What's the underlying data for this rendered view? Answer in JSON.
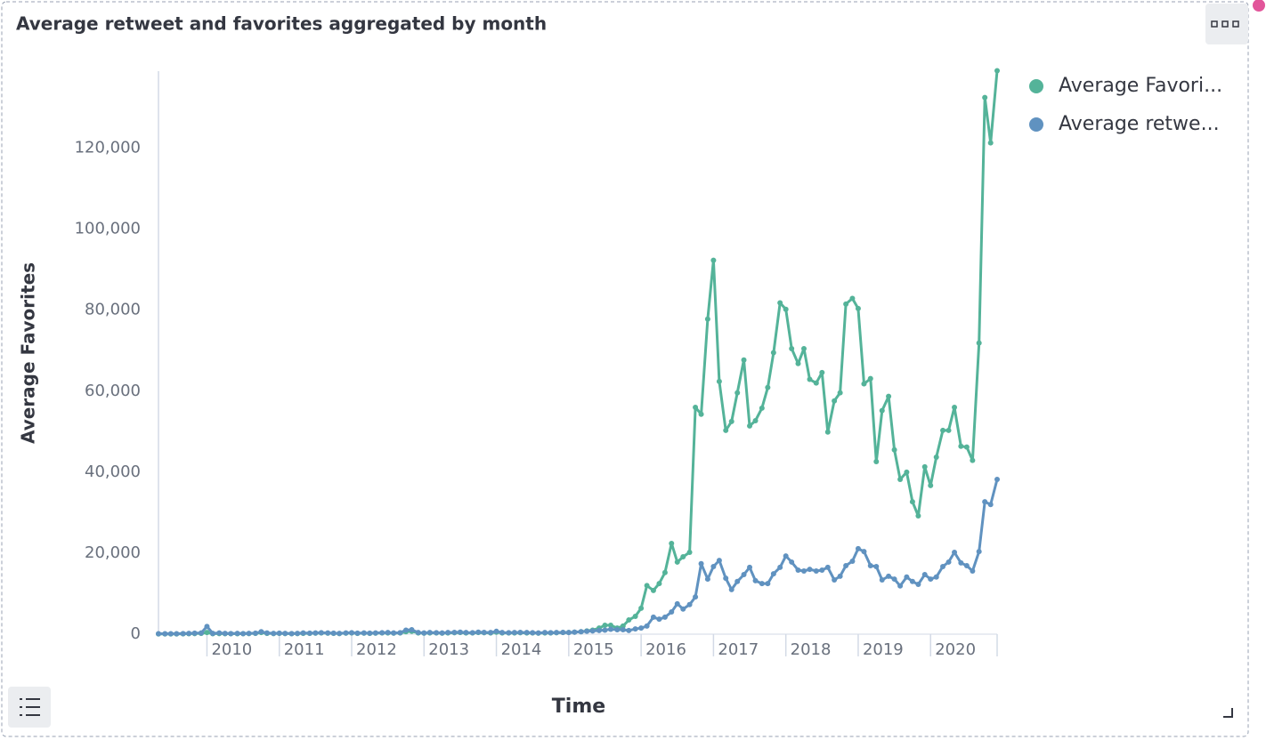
{
  "chart_data": {
    "type": "line",
    "title": "Average retweet and favorites aggregated by month",
    "ylabel": "Average Favorites",
    "xlabel": "Time",
    "xlim": [
      2009.33,
      2020.92
    ],
    "xticks": [
      2010,
      2011,
      2012,
      2013,
      2014,
      2015,
      2016,
      2017,
      2018,
      2019,
      2020
    ],
    "ylim": [
      0,
      139000
    ],
    "yticks": [
      0,
      {
        "value": 20000,
        "label": "20,000"
      },
      {
        "value": 40000,
        "label": "40,000"
      },
      {
        "value": 60000,
        "label": "60,000"
      },
      {
        "value": 80000,
        "label": "80,000"
      },
      {
        "value": 100000,
        "label": "100,000"
      },
      {
        "value": 120000,
        "label": "120,000"
      }
    ],
    "grid": false,
    "legend": "top-right",
    "x": [
      2009.33,
      2009.42,
      2009.5,
      2009.58,
      2009.67,
      2009.75,
      2009.83,
      2009.92,
      2010,
      2010.08,
      2010.17,
      2010.25,
      2010.33,
      2010.42,
      2010.5,
      2010.58,
      2010.67,
      2010.75,
      2010.83,
      2010.92,
      2011,
      2011.08,
      2011.17,
      2011.25,
      2011.33,
      2011.42,
      2011.5,
      2011.58,
      2011.67,
      2011.75,
      2011.83,
      2011.92,
      2012,
      2012.08,
      2012.17,
      2012.25,
      2012.33,
      2012.42,
      2012.5,
      2012.58,
      2012.67,
      2012.75,
      2012.83,
      2012.92,
      2013,
      2013.08,
      2013.17,
      2013.25,
      2013.33,
      2013.42,
      2013.5,
      2013.58,
      2013.67,
      2013.75,
      2013.83,
      2013.92,
      2014,
      2014.08,
      2014.17,
      2014.25,
      2014.33,
      2014.42,
      2014.5,
      2014.58,
      2014.67,
      2014.75,
      2014.83,
      2014.92,
      2015,
      2015.08,
      2015.17,
      2015.25,
      2015.33,
      2015.42,
      2015.5,
      2015.58,
      2015.67,
      2015.75,
      2015.83,
      2015.92,
      2016,
      2016.08,
      2016.17,
      2016.25,
      2016.33,
      2016.42,
      2016.5,
      2016.58,
      2016.67,
      2016.75,
      2016.83,
      2016.92,
      2017,
      2017.08,
      2017.17,
      2017.25,
      2017.33,
      2017.42,
      2017.5,
      2017.58,
      2017.67,
      2017.75,
      2017.83,
      2017.92,
      2018,
      2018.08,
      2018.17,
      2018.25,
      2018.33,
      2018.42,
      2018.5,
      2018.58,
      2018.67,
      2018.75,
      2018.83,
      2018.92,
      2019,
      2019.08,
      2019.17,
      2019.25,
      2019.33,
      2019.42,
      2019.5,
      2019.58,
      2019.67,
      2019.75,
      2019.83,
      2019.92,
      2020,
      2020.08,
      2020.17,
      2020.25,
      2020.33,
      2020.42,
      2020.5,
      2020.58,
      2020.67,
      2020.75,
      2020.83,
      2020.92
    ],
    "series": [
      {
        "name": "Average Favori...",
        "color": "#54b399",
        "values": [
          50,
          50,
          50,
          50,
          80,
          100,
          150,
          200,
          400,
          100,
          150,
          100,
          100,
          120,
          100,
          150,
          200,
          400,
          200,
          150,
          200,
          150,
          100,
          150,
          200,
          200,
          250,
          300,
          250,
          200,
          150,
          250,
          300,
          200,
          250,
          200,
          250,
          300,
          300,
          250,
          300,
          600,
          700,
          300,
          250,
          300,
          300,
          250,
          300,
          350,
          400,
          300,
          300,
          400,
          350,
          300,
          500,
          300,
          300,
          300,
          350,
          300,
          300,
          250,
          300,
          300,
          350,
          400,
          400,
          500,
          600,
          800,
          1000,
          1500,
          2200,
          2200,
          1500,
          2000,
          3500,
          4400,
          6400,
          12000,
          10800,
          12500,
          15200,
          22400,
          17800,
          19100,
          20200,
          56000,
          54300,
          77800,
          92300,
          62400,
          50300,
          52500,
          59600,
          67700,
          51400,
          52700,
          55800,
          60900,
          69500,
          81800,
          80200,
          70500,
          66800,
          70500,
          62900,
          62000,
          64600,
          49900,
          57600,
          59600,
          81500,
          82900,
          80400,
          61800,
          63100,
          42600,
          55200,
          58700,
          45500,
          38200,
          40000,
          32700,
          29200,
          41300,
          36700,
          43700,
          50300,
          50300,
          56000,
          46400,
          46200,
          42900,
          71900,
          132500,
          121300,
          139100
        ]
      },
      {
        "name": "Average retwe...",
        "color": "#6092c0",
        "values": [
          100,
          100,
          100,
          100,
          150,
          200,
          250,
          300,
          1900,
          200,
          300,
          200,
          150,
          200,
          150,
          200,
          250,
          600,
          300,
          200,
          250,
          200,
          150,
          200,
          300,
          250,
          300,
          350,
          300,
          250,
          200,
          300,
          350,
          250,
          300,
          250,
          300,
          350,
          400,
          300,
          350,
          1000,
          1100,
          400,
          300,
          400,
          350,
          300,
          400,
          450,
          500,
          400,
          350,
          500,
          450,
          400,
          700,
          400,
          350,
          400,
          450,
          400,
          350,
          300,
          400,
          350,
          400,
          450,
          400,
          500,
          600,
          700,
          800,
          900,
          1000,
          1200,
          1100,
          1100,
          900,
          1300,
          1500,
          2000,
          4200,
          3700,
          4200,
          5500,
          7500,
          6200,
          7300,
          9200,
          17400,
          13600,
          16700,
          18200,
          13800,
          11000,
          13000,
          14700,
          16500,
          13200,
          12500,
          12500,
          14900,
          16500,
          19300,
          17800,
          15800,
          15600,
          16000,
          15600,
          15800,
          16500,
          13400,
          14300,
          16900,
          18000,
          21100,
          20400,
          16900,
          16700,
          13400,
          14300,
          13600,
          11900,
          14100,
          13000,
          12300,
          14700,
          13600,
          14100,
          16700,
          17800,
          20200,
          17600,
          16900,
          15600,
          20400,
          32700,
          32000,
          38200
        ]
      }
    ]
  }
}
